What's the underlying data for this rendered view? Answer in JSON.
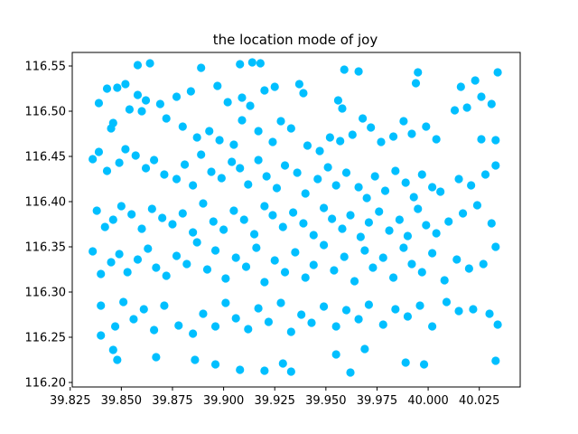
{
  "chart_data": {
    "type": "scatter",
    "title": "the location mode of joy",
    "xlabel": "",
    "ylabel": "",
    "xlim": [
      39.826,
      40.045
    ],
    "ylim": [
      116.195,
      116.565
    ],
    "x_ticks": [
      "39.825",
      "39.850",
      "39.875",
      "39.900",
      "39.925",
      "39.950",
      "39.975",
      "40.000",
      "40.025"
    ],
    "y_ticks": [
      "116.20",
      "116.25",
      "116.30",
      "116.35",
      "116.40",
      "116.45",
      "116.50",
      "116.55"
    ],
    "grid": false,
    "legend": "none",
    "point_color": "#00bfff",
    "series": [
      {
        "points": [
          [
            39.864,
            116.553
          ],
          [
            39.858,
            116.551
          ],
          [
            39.889,
            116.548
          ],
          [
            39.908,
            116.552
          ],
          [
            39.914,
            116.554
          ],
          [
            39.918,
            116.553
          ],
          [
            39.959,
            116.546
          ],
          [
            39.966,
            116.544
          ],
          [
            39.995,
            116.543
          ],
          [
            40.034,
            116.543
          ],
          [
            39.843,
            116.525
          ],
          [
            39.848,
            116.526
          ],
          [
            39.852,
            116.53
          ],
          [
            39.858,
            116.518
          ],
          [
            39.862,
            116.512
          ],
          [
            39.869,
            116.508
          ],
          [
            39.877,
            116.516
          ],
          [
            39.884,
            116.522
          ],
          [
            39.897,
            116.528
          ],
          [
            39.902,
            116.51
          ],
          [
            39.909,
            116.515
          ],
          [
            39.913,
            116.506
          ],
          [
            39.92,
            116.523
          ],
          [
            39.925,
            116.527
          ],
          [
            39.937,
            116.53
          ],
          [
            39.939,
            116.52
          ],
          [
            39.956,
            116.512
          ],
          [
            39.958,
            116.503
          ],
          [
            39.994,
            116.531
          ],
          [
            40.016,
            116.527
          ],
          [
            40.023,
            116.534
          ],
          [
            40.026,
            116.516
          ],
          [
            40.031,
            116.508
          ],
          [
            39.839,
            116.509
          ],
          [
            39.845,
            116.481
          ],
          [
            39.846,
            116.487
          ],
          [
            39.854,
            116.502
          ],
          [
            39.86,
            116.5
          ],
          [
            39.872,
            116.492
          ],
          [
            39.88,
            116.483
          ],
          [
            39.887,
            116.471
          ],
          [
            39.893,
            116.478
          ],
          [
            39.898,
            116.468
          ],
          [
            39.905,
            116.463
          ],
          [
            39.909,
            116.49
          ],
          [
            39.917,
            116.478
          ],
          [
            39.924,
            116.466
          ],
          [
            39.928,
            116.489
          ],
          [
            39.933,
            116.481
          ],
          [
            39.941,
            116.462
          ],
          [
            39.947,
            116.456
          ],
          [
            39.952,
            116.471
          ],
          [
            39.957,
            116.467
          ],
          [
            39.963,
            116.474
          ],
          [
            39.968,
            116.492
          ],
          [
            39.972,
            116.482
          ],
          [
            39.977,
            116.466
          ],
          [
            39.983,
            116.472
          ],
          [
            39.988,
            116.489
          ],
          [
            39.992,
            116.475
          ],
          [
            39.999,
            116.483
          ],
          [
            40.004,
            116.469
          ],
          [
            40.013,
            116.501
          ],
          [
            40.019,
            116.504
          ],
          [
            40.026,
            116.469
          ],
          [
            40.033,
            116.468
          ],
          [
            39.836,
            116.447
          ],
          [
            39.839,
            116.455
          ],
          [
            39.843,
            116.434
          ],
          [
            39.849,
            116.443
          ],
          [
            39.852,
            116.458
          ],
          [
            39.857,
            116.451
          ],
          [
            39.862,
            116.437
          ],
          [
            39.866,
            116.446
          ],
          [
            39.871,
            116.43
          ],
          [
            39.877,
            116.425
          ],
          [
            39.881,
            116.441
          ],
          [
            39.885,
            116.418
          ],
          [
            39.889,
            116.452
          ],
          [
            39.894,
            116.433
          ],
          [
            39.899,
            116.426
          ],
          [
            39.904,
            116.444
          ],
          [
            39.908,
            116.437
          ],
          [
            39.912,
            116.419
          ],
          [
            39.917,
            116.446
          ],
          [
            39.921,
            116.428
          ],
          [
            39.926,
            116.415
          ],
          [
            39.93,
            116.44
          ],
          [
            39.936,
            116.432
          ],
          [
            39.94,
            116.409
          ],
          [
            39.946,
            116.425
          ],
          [
            39.951,
            116.438
          ],
          [
            39.955,
            116.418
          ],
          [
            39.96,
            116.432
          ],
          [
            39.966,
            116.416
          ],
          [
            39.97,
            116.404
          ],
          [
            39.974,
            116.428
          ],
          [
            39.979,
            116.412
          ],
          [
            39.984,
            116.434
          ],
          [
            39.989,
            116.421
          ],
          [
            39.993,
            116.405
          ],
          [
            39.997,
            116.43
          ],
          [
            40.002,
            116.416
          ],
          [
            40.006,
            116.411
          ],
          [
            40.015,
            116.425
          ],
          [
            40.021,
            116.418
          ],
          [
            40.028,
            116.43
          ],
          [
            40.033,
            116.44
          ],
          [
            39.838,
            116.39
          ],
          [
            39.842,
            116.372
          ],
          [
            39.846,
            116.38
          ],
          [
            39.85,
            116.395
          ],
          [
            39.855,
            116.386
          ],
          [
            39.86,
            116.37
          ],
          [
            39.865,
            116.392
          ],
          [
            39.87,
            116.382
          ],
          [
            39.875,
            116.375
          ],
          [
            39.88,
            116.387
          ],
          [
            39.885,
            116.366
          ],
          [
            39.89,
            116.398
          ],
          [
            39.895,
            116.378
          ],
          [
            39.9,
            116.369
          ],
          [
            39.905,
            116.39
          ],
          [
            39.91,
            116.38
          ],
          [
            39.915,
            116.364
          ],
          [
            39.92,
            116.395
          ],
          [
            39.924,
            116.385
          ],
          [
            39.929,
            116.372
          ],
          [
            39.934,
            116.388
          ],
          [
            39.939,
            116.376
          ],
          [
            39.944,
            116.363
          ],
          [
            39.949,
            116.393
          ],
          [
            39.953,
            116.381
          ],
          [
            39.958,
            116.37
          ],
          [
            39.962,
            116.385
          ],
          [
            39.967,
            116.361
          ],
          [
            39.971,
            116.377
          ],
          [
            39.976,
            116.389
          ],
          [
            39.981,
            116.368
          ],
          [
            39.986,
            116.38
          ],
          [
            39.99,
            116.362
          ],
          [
            39.995,
            116.392
          ],
          [
            39.999,
            116.374
          ],
          [
            40.004,
            116.365
          ],
          [
            40.01,
            116.378
          ],
          [
            40.017,
            116.387
          ],
          [
            40.024,
            116.396
          ],
          [
            40.031,
            116.376
          ],
          [
            39.836,
            116.345
          ],
          [
            39.84,
            116.32
          ],
          [
            39.845,
            116.333
          ],
          [
            39.849,
            116.342
          ],
          [
            39.853,
            116.322
          ],
          [
            39.858,
            116.336
          ],
          [
            39.863,
            116.348
          ],
          [
            39.867,
            116.327
          ],
          [
            39.872,
            116.318
          ],
          [
            39.877,
            116.34
          ],
          [
            39.882,
            116.331
          ],
          [
            39.887,
            116.355
          ],
          [
            39.892,
            116.325
          ],
          [
            39.896,
            116.346
          ],
          [
            39.901,
            116.315
          ],
          [
            39.906,
            116.338
          ],
          [
            39.911,
            116.328
          ],
          [
            39.916,
            116.349
          ],
          [
            39.92,
            116.311
          ],
          [
            39.925,
            116.335
          ],
          [
            39.93,
            116.322
          ],
          [
            39.935,
            116.344
          ],
          [
            39.94,
            116.316
          ],
          [
            39.944,
            116.33
          ],
          [
            39.949,
            116.352
          ],
          [
            39.954,
            116.324
          ],
          [
            39.959,
            116.339
          ],
          [
            39.964,
            116.312
          ],
          [
            39.969,
            116.346
          ],
          [
            39.973,
            116.327
          ],
          [
            39.978,
            116.338
          ],
          [
            39.983,
            116.316
          ],
          [
            39.988,
            116.349
          ],
          [
            39.992,
            116.331
          ],
          [
            39.997,
            116.322
          ],
          [
            40.002,
            116.343
          ],
          [
            40.008,
            116.313
          ],
          [
            40.014,
            116.336
          ],
          [
            40.02,
            116.326
          ],
          [
            40.027,
            116.331
          ],
          [
            40.033,
            116.35
          ],
          [
            39.84,
            116.285
          ],
          [
            39.847,
            116.262
          ],
          [
            39.851,
            116.289
          ],
          [
            39.856,
            116.27
          ],
          [
            39.861,
            116.281
          ],
          [
            39.866,
            116.258
          ],
          [
            39.871,
            116.285
          ],
          [
            39.878,
            116.263
          ],
          [
            39.885,
            116.254
          ],
          [
            39.89,
            116.276
          ],
          [
            39.896,
            116.262
          ],
          [
            39.901,
            116.288
          ],
          [
            39.906,
            116.271
          ],
          [
            39.912,
            116.259
          ],
          [
            39.917,
            116.282
          ],
          [
            39.922,
            116.267
          ],
          [
            39.928,
            116.288
          ],
          [
            39.933,
            116.256
          ],
          [
            39.938,
            116.275
          ],
          [
            39.943,
            116.266
          ],
          [
            39.949,
            116.284
          ],
          [
            39.955,
            116.262
          ],
          [
            39.96,
            116.28
          ],
          [
            39.966,
            116.27
          ],
          [
            39.971,
            116.286
          ],
          [
            39.978,
            116.264
          ],
          [
            39.984,
            116.281
          ],
          [
            39.99,
            116.273
          ],
          [
            39.996,
            116.285
          ],
          [
            40.002,
            116.262
          ],
          [
            40.009,
            116.289
          ],
          [
            40.015,
            116.279
          ],
          [
            40.022,
            116.281
          ],
          [
            40.03,
            116.276
          ],
          [
            40.034,
            116.264
          ],
          [
            39.84,
            116.252
          ],
          [
            39.846,
            116.236
          ],
          [
            39.848,
            116.225
          ],
          [
            39.867,
            116.228
          ],
          [
            39.886,
            116.225
          ],
          [
            39.896,
            116.22
          ],
          [
            39.908,
            116.214
          ],
          [
            39.92,
            116.213
          ],
          [
            39.929,
            116.221
          ],
          [
            39.933,
            116.212
          ],
          [
            39.955,
            116.231
          ],
          [
            39.962,
            116.211
          ],
          [
            39.969,
            116.237
          ],
          [
            39.989,
            116.222
          ],
          [
            39.998,
            116.22
          ],
          [
            40.033,
            116.224
          ]
        ]
      }
    ]
  }
}
